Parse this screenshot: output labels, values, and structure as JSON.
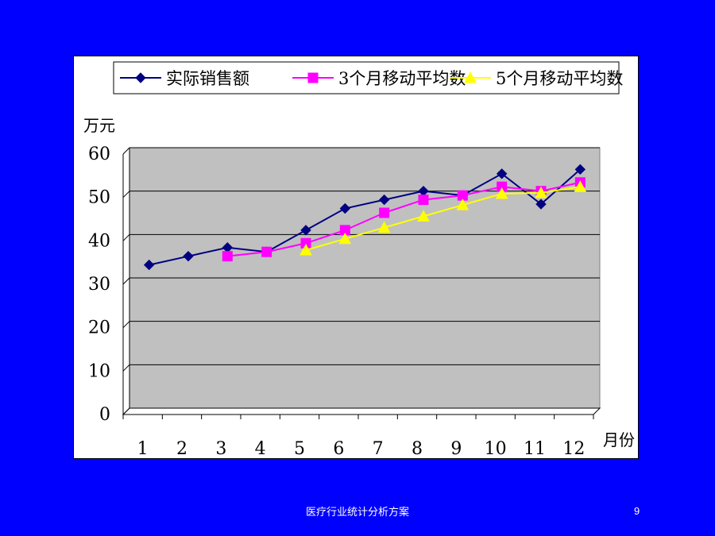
{
  "footer": {
    "text": "医疗行业统计分析方案",
    "page_number": "9"
  },
  "chart_data": {
    "type": "line",
    "ylabel": "万元",
    "xlabel": "月份",
    "ylim": [
      0,
      60
    ],
    "yticks": [
      "0",
      "10",
      "20",
      "30",
      "40",
      "50",
      "60"
    ],
    "categories": [
      "1",
      "2",
      "3",
      "4",
      "5",
      "6",
      "7",
      "8",
      "9",
      "10",
      "11",
      "12"
    ],
    "grid": true,
    "legend_position": "top",
    "plot_background": "#C0C0C0",
    "series": [
      {
        "name": "实际销售额",
        "color": "#000080",
        "marker": "diamond",
        "values": [
          33,
          35,
          37,
          36,
          41,
          46,
          48,
          50,
          49,
          54,
          47,
          55
        ]
      },
      {
        "name": "3个月移动平均数",
        "color": "#FF00FF",
        "marker": "square",
        "values": [
          null,
          null,
          35,
          36,
          38,
          41,
          45,
          48,
          49,
          51,
          50,
          52
        ]
      },
      {
        "name": "5个月移动平均数",
        "color": "#FFFF00",
        "marker": "triangle",
        "values": [
          null,
          null,
          null,
          null,
          36.4,
          39,
          41.6,
          44.2,
          46.8,
          49.4,
          49.6,
          51
        ]
      }
    ]
  }
}
